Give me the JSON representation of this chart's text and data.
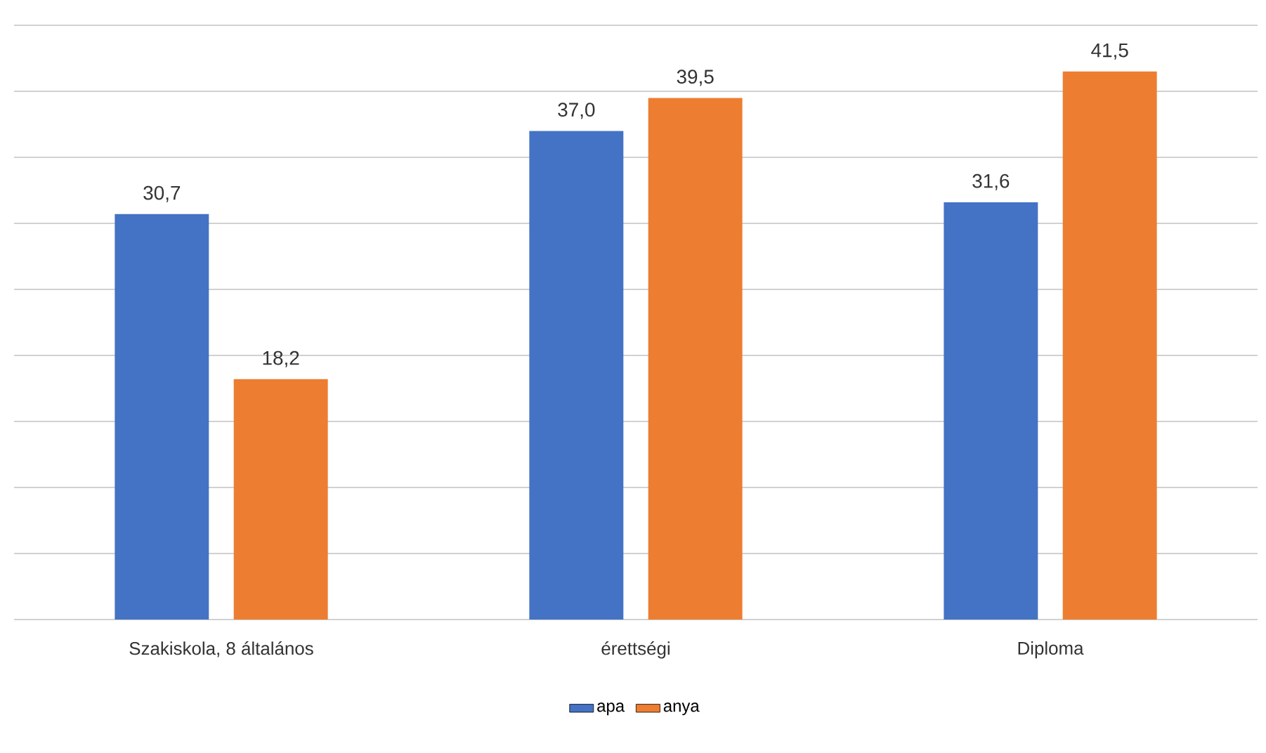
{
  "chart_data": {
    "type": "bar",
    "categories": [
      "Szakiskola, 8 általános",
      "érettségi",
      "Diploma"
    ],
    "series": [
      {
        "name": "apa",
        "color": "#4472c4",
        "values": [
          30.7,
          37.0,
          31.6
        ],
        "value_labels": [
          "30,7",
          "37,0",
          "31,6"
        ]
      },
      {
        "name": "anya",
        "color": "#ed7d31",
        "values": [
          18.2,
          39.5,
          41.5
        ],
        "value_labels": [
          "18,2",
          "39,5",
          "41,5"
        ]
      }
    ],
    "ylim": [
      0,
      45
    ],
    "yticks": [
      {
        "value": 0,
        "label": null
      },
      {
        "value": 5,
        "label": null
      },
      {
        "value": 10,
        "label": null
      },
      {
        "value": 15,
        "label": null
      },
      {
        "value": 20,
        "label": null
      },
      {
        "value": 25,
        "label": null
      },
      {
        "value": 30,
        "label": null
      },
      {
        "value": 35,
        "label": null
      },
      {
        "value": 40,
        "label": null
      },
      {
        "value": 45,
        "label": null
      }
    ],
    "grid": "y",
    "tick_labels": "x",
    "legend": "bottom"
  }
}
